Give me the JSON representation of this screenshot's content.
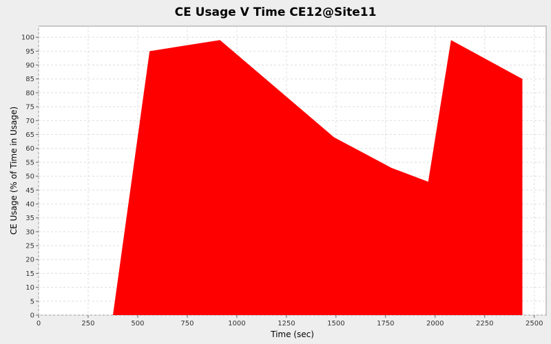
{
  "chart_data": {
    "type": "area",
    "title": "CE Usage V Time CE12@Site11",
    "xlabel": "Time (sec)",
    "ylabel": "CE Usage (% of Time in Usage)",
    "xlim": [
      0,
      2560
    ],
    "ylim": [
      0,
      104
    ],
    "xticks": [
      0,
      250,
      500,
      750,
      1000,
      1250,
      1500,
      1750,
      2000,
      2250,
      2500
    ],
    "yticks": [
      0,
      5,
      10,
      15,
      20,
      25,
      30,
      35,
      40,
      45,
      50,
      55,
      60,
      65,
      70,
      75,
      80,
      85,
      90,
      95,
      100
    ],
    "grid": true,
    "series": [
      {
        "color": "#ff0000",
        "x": [
          375,
          560,
          915,
          1490,
          1780,
          1965,
          2080,
          2440
        ],
        "y": [
          0,
          95,
          99,
          64,
          53,
          48,
          99,
          85
        ]
      }
    ]
  }
}
